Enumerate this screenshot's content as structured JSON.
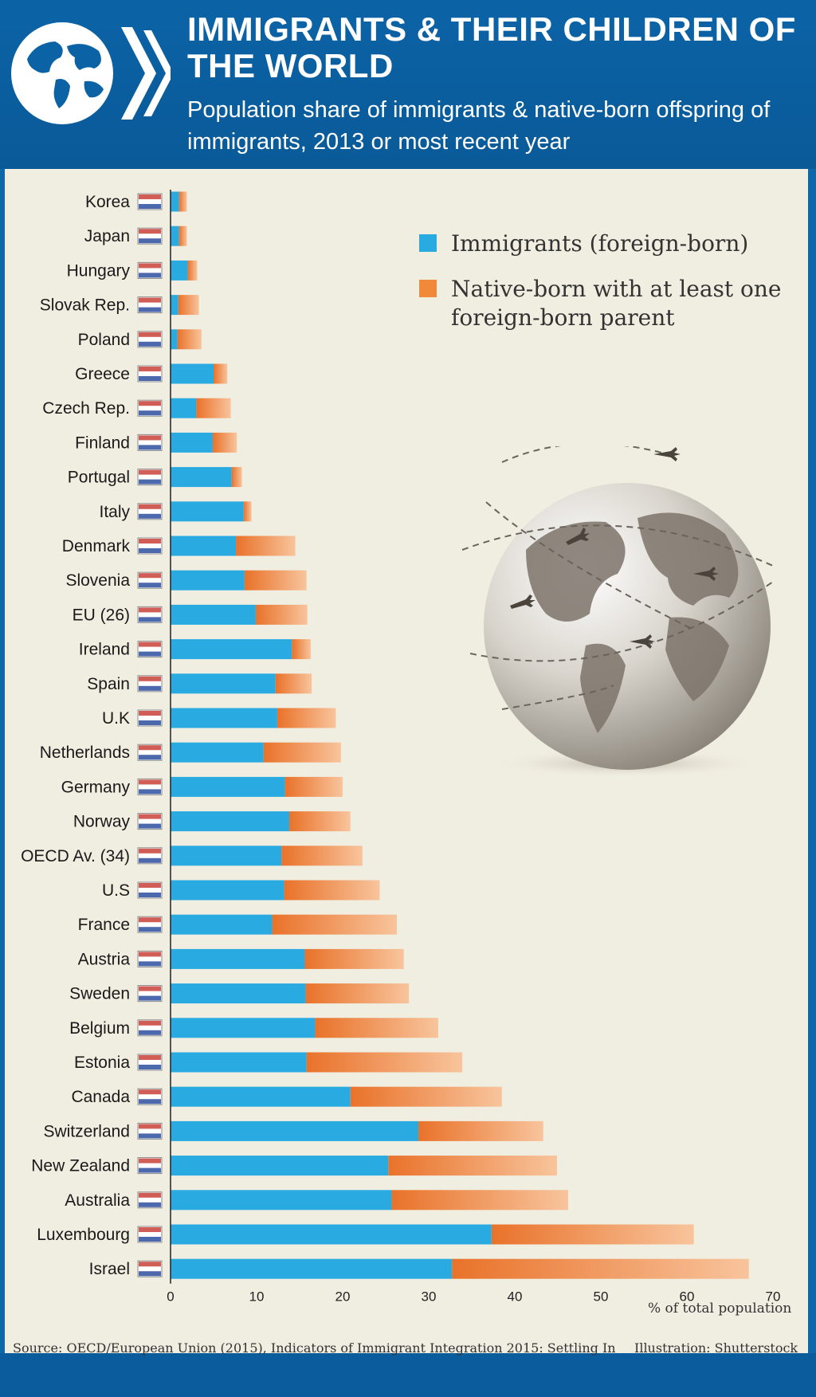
{
  "header": {
    "title": "IMMIGRANTS & THEIR CHILDREN OF THE WORLD",
    "subtitle": "Population share of immigrants & native-born offspring of immigrants, 2013 or most recent year"
  },
  "footer": {
    "source": "Source: OECD/European Union (2015), Indicators of Immigrant Integration 2015: Settling In",
    "credit": "Illustration: Shutterstock"
  },
  "colors": {
    "immigrants": "#29abe2",
    "native_born": "#f08a3a",
    "background": "#f0ede1",
    "header": "#0b63a6"
  },
  "chart_data": {
    "type": "bar",
    "orientation": "horizontal",
    "stacked": true,
    "title": "IMMIGRANTS & THEIR CHILDREN OF THE WORLD",
    "subtitle": "Population share of immigrants & native-born offspring of immigrants, 2013 or most recent year",
    "xlabel": "% of total population",
    "xlim": [
      0,
      70
    ],
    "xticks": [
      0,
      10,
      20,
      30,
      40,
      50,
      60,
      70
    ],
    "legend_position": "top-right",
    "categories": [
      "Korea",
      "Japan",
      "Hungary",
      "Slovak Rep.",
      "Poland",
      "Greece",
      "Czech Rep.",
      "Finland",
      "Portugal",
      "Italy",
      "Denmark",
      "Slovenia",
      "EU (26)",
      "Ireland",
      "Spain",
      "U.K",
      "Netherlands",
      "Germany",
      "Norway",
      "OECD Av. (34)",
      "U.S",
      "France",
      "Austria",
      "Sweden",
      "Belgium",
      "Estonia",
      "Canada",
      "Switzerland",
      "New Zealand",
      "Australia",
      "Luxembourg",
      "Israel"
    ],
    "series": [
      {
        "name": "Immigrants (foreign-born)",
        "values": [
          1.0,
          1.0,
          2.0,
          0.9,
          0.8,
          5.0,
          3.0,
          4.9,
          7.1,
          8.5,
          7.6,
          8.6,
          9.9,
          14.1,
          12.2,
          12.4,
          10.8,
          13.3,
          13.8,
          12.9,
          13.2,
          11.8,
          15.6,
          15.7,
          16.8,
          15.8,
          20.9,
          28.8,
          25.3,
          25.7,
          37.3,
          32.7
        ]
      },
      {
        "name": "Native-born with at least one foreign-born parent",
        "values": [
          0.9,
          0.9,
          1.1,
          2.4,
          2.8,
          1.6,
          4.0,
          2.8,
          1.2,
          0.9,
          6.9,
          7.2,
          6.0,
          2.2,
          4.2,
          6.8,
          9.0,
          6.7,
          7.1,
          9.4,
          11.1,
          14.5,
          11.5,
          12.0,
          14.3,
          18.1,
          17.6,
          14.5,
          19.6,
          20.5,
          23.5,
          34.5
        ]
      }
    ]
  }
}
